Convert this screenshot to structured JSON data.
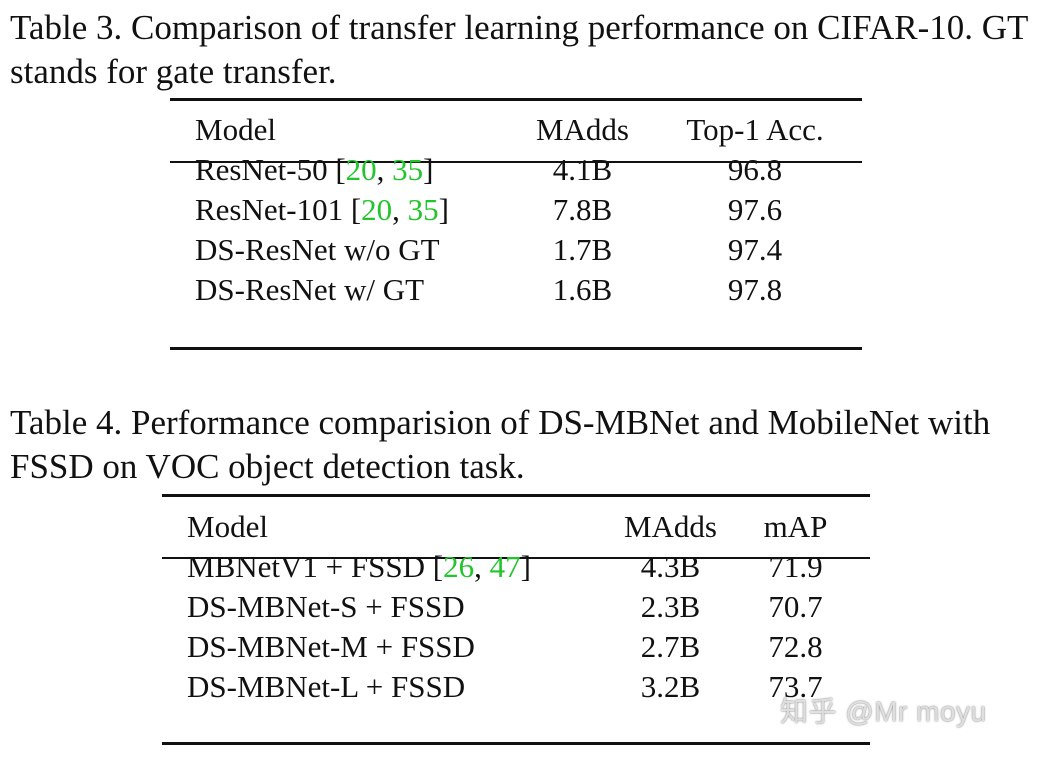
{
  "table3": {
    "caption": "Table 3. Comparison of transfer learning performance on CIFAR-10. GT stands for gate transfer.",
    "headers": [
      "Model",
      "MAdds",
      "Top-1 Acc."
    ],
    "rows": [
      {
        "model": "ResNet-50",
        "cites": [
          "20",
          "35"
        ],
        "madds": "4.1B",
        "metric": "96.8"
      },
      {
        "model": "ResNet-101",
        "cites": [
          "20",
          "35"
        ],
        "madds": "7.8B",
        "metric": "97.6"
      },
      {
        "model": "DS-ResNet w/o GT",
        "cites": [],
        "madds": "1.7B",
        "metric": "97.4"
      },
      {
        "model": "DS-ResNet w/ GT",
        "cites": [],
        "madds": "1.6B",
        "metric": "97.8"
      }
    ]
  },
  "table4": {
    "caption": "Table 4. Performance comparision of DS-MBNet and MobileNet with FSSD on VOC object detection task.",
    "headers": [
      "Model",
      "MAdds",
      "mAP"
    ],
    "rows": [
      {
        "model": "MBNetV1 + FSSD",
        "cites": [
          "26",
          "47"
        ],
        "madds": "4.3B",
        "metric": "71.9"
      },
      {
        "model": "DS-MBNet-S + FSSD",
        "cites": [],
        "madds": "2.3B",
        "metric": "70.7"
      },
      {
        "model": "DS-MBNet-M + FSSD",
        "cites": [],
        "madds": "2.7B",
        "metric": "72.8"
      },
      {
        "model": "DS-MBNet-L + FSSD",
        "cites": [],
        "madds": "3.2B",
        "metric": "73.7"
      }
    ]
  },
  "watermark": "知乎 @Mr moyu",
  "colors": {
    "citation": "#22c52b",
    "text": "#111111",
    "rule": "#111111"
  }
}
